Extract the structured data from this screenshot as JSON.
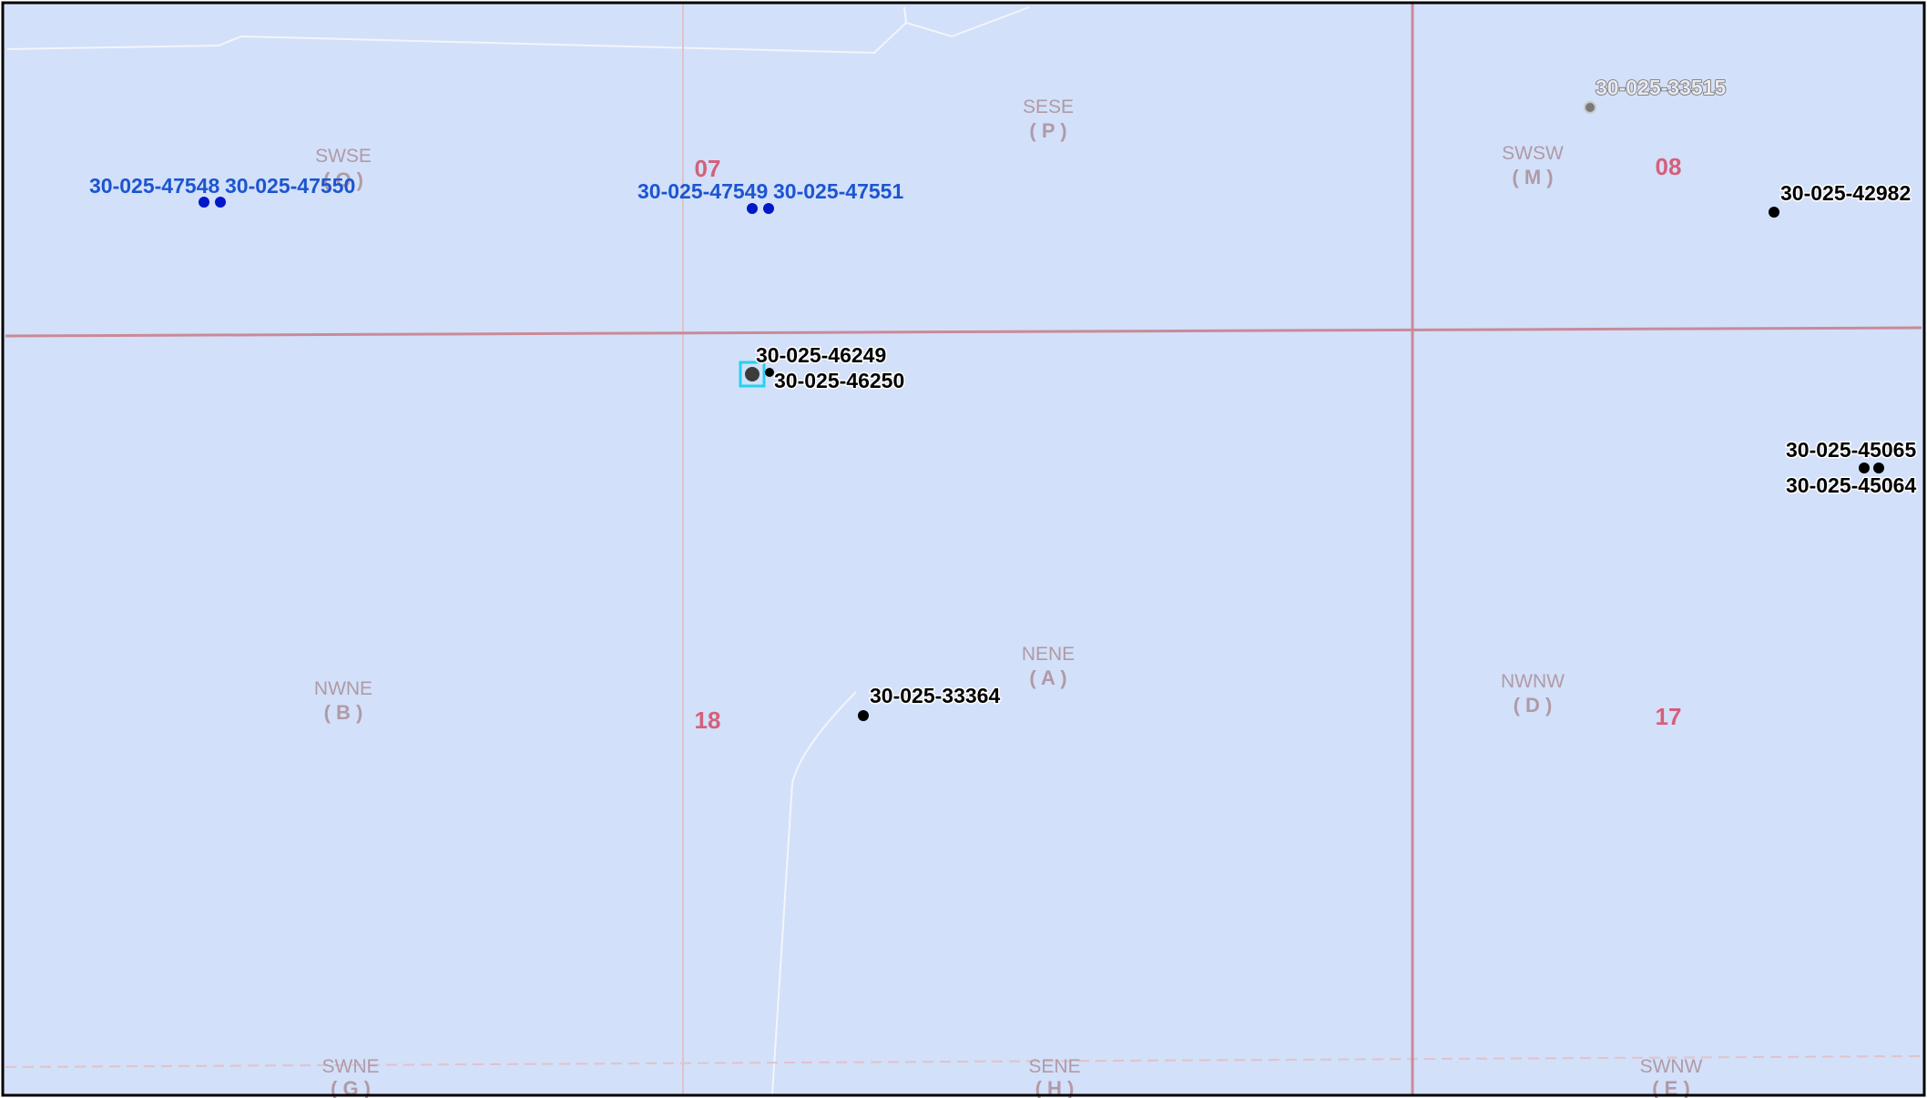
{
  "map": {
    "colors": {
      "background": "#d3e0f9",
      "section_line": "#c98a98",
      "quarter_line": "#e0c2cb",
      "road": "#f2f5fc",
      "section_number": "#d4607c",
      "qq_label": "#b09aa6",
      "well_active": "#000000",
      "well_plugged": "#7a7a7a",
      "well_blue": "#0018c8",
      "well_label_blue": "#1c55d0",
      "selection": "#22d3ee",
      "border": "#000000"
    },
    "sections": [
      {
        "id": "s07",
        "number": "07"
      },
      {
        "id": "s08",
        "number": "08"
      },
      {
        "id": "s18",
        "number": "18"
      },
      {
        "id": "s17",
        "number": "17"
      }
    ],
    "quarter_quarters": [
      {
        "id": "swse",
        "name": "SWSE",
        "letter": "( O )"
      },
      {
        "id": "sese",
        "name": "SESE",
        "letter": "( P )"
      },
      {
        "id": "swsw",
        "name": "SWSW",
        "letter": "( M )"
      },
      {
        "id": "nwne",
        "name": "NWNE",
        "letter": "( B )"
      },
      {
        "id": "nene",
        "name": "NENE",
        "letter": "( A )"
      },
      {
        "id": "nwnw",
        "name": "NWNW",
        "letter": "( D )"
      },
      {
        "id": "swne",
        "name": "SWNE",
        "letter": "( G )"
      },
      {
        "id": "sene",
        "name": "SENE",
        "letter": "( H )"
      },
      {
        "id": "swnw",
        "name": "SWNW",
        "letter": "( E )"
      }
    ],
    "wells": [
      {
        "id": "w47548",
        "api": "30-025-47548",
        "status": "blue"
      },
      {
        "id": "w47550",
        "api": "30-025-47550",
        "status": "blue"
      },
      {
        "id": "w47549",
        "api": "30-025-47549",
        "status": "blue"
      },
      {
        "id": "w47551",
        "api": "30-025-47551",
        "status": "blue"
      },
      {
        "id": "w46249",
        "api": "30-025-46249",
        "status": "selected"
      },
      {
        "id": "w46250",
        "api": "30-025-46250",
        "status": "active"
      },
      {
        "id": "w33515",
        "api": "30-025-33515",
        "status": "plugged"
      },
      {
        "id": "w42982",
        "api": "30-025-42982",
        "status": "active"
      },
      {
        "id": "w45065",
        "api": "30-025-45065",
        "status": "active"
      },
      {
        "id": "w45064",
        "api": "30-025-45064",
        "status": "active"
      },
      {
        "id": "w33364",
        "api": "30-025-33364",
        "status": "active"
      }
    ]
  }
}
